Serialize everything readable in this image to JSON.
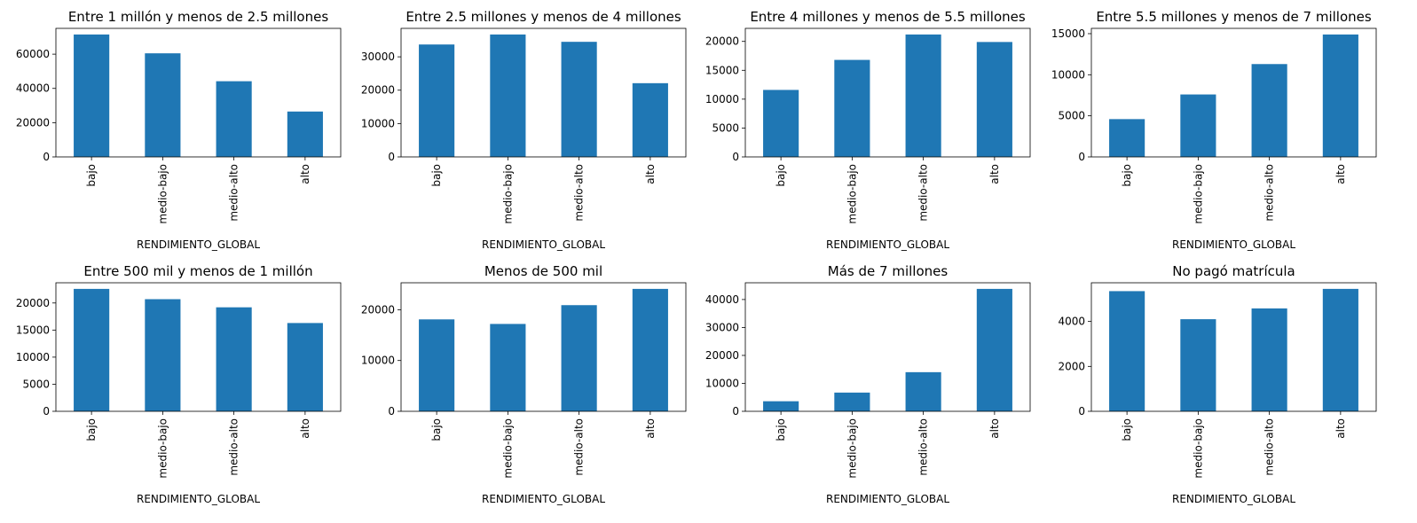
{
  "chart_data": [
    {
      "type": "bar",
      "title": "Entre 1 millón y menos de 2.5 millones",
      "xlabel": "RENDIMIENTO_GLOBAL",
      "ylabel": "",
      "categories": [
        "bajo",
        "medio-bajo",
        "medio-alto",
        "alto"
      ],
      "values": [
        71500,
        60500,
        44200,
        26500
      ],
      "ylim": [
        0,
        75075
      ],
      "yticks": [
        0,
        20000,
        40000,
        60000
      ],
      "color": "#1f77b4"
    },
    {
      "type": "bar",
      "title": "Entre 2.5 millones y menos de 4 millones",
      "xlabel": "RENDIMIENTO_GLOBAL",
      "ylabel": "",
      "categories": [
        "bajo",
        "medio-bajo",
        "medio-alto",
        "alto"
      ],
      "values": [
        33700,
        36700,
        34500,
        22100
      ],
      "ylim": [
        0,
        38535
      ],
      "yticks": [
        0,
        10000,
        20000,
        30000
      ],
      "color": "#1f77b4"
    },
    {
      "type": "bar",
      "title": "Entre 4 millones y menos de 5.5 millones",
      "xlabel": "RENDIMIENTO_GLOBAL",
      "ylabel": "",
      "categories": [
        "bajo",
        "medio-bajo",
        "medio-alto",
        "alto"
      ],
      "values": [
        11600,
        16800,
        21200,
        19900
      ],
      "ylim": [
        0,
        22260
      ],
      "yticks": [
        0,
        5000,
        10000,
        15000,
        20000
      ],
      "color": "#1f77b4"
    },
    {
      "type": "bar",
      "title": "Entre 5.5 millones y menos de 7 millones",
      "xlabel": "RENDIMIENTO_GLOBAL",
      "ylabel": "",
      "categories": [
        "bajo",
        "medio-bajo",
        "medio-alto",
        "alto"
      ],
      "values": [
        4600,
        7600,
        11300,
        14900
      ],
      "ylim": [
        0,
        15645
      ],
      "yticks": [
        0,
        5000,
        10000,
        15000
      ],
      "color": "#1f77b4"
    },
    {
      "type": "bar",
      "title": "Entre 500 mil y menos de 1 millón",
      "xlabel": "RENDIMIENTO_GLOBAL",
      "ylabel": "",
      "categories": [
        "bajo",
        "medio-bajo",
        "medio-alto",
        "alto"
      ],
      "values": [
        22600,
        20700,
        19200,
        16300
      ],
      "ylim": [
        0,
        23730
      ],
      "yticks": [
        0,
        5000,
        10000,
        15000,
        20000
      ],
      "color": "#1f77b4"
    },
    {
      "type": "bar",
      "title": "Menos de 500 mil",
      "xlabel": "RENDIMIENTO_GLOBAL",
      "ylabel": "",
      "categories": [
        "bajo",
        "medio-bajo",
        "medio-alto",
        "alto"
      ],
      "values": [
        18100,
        17200,
        20900,
        24100
      ],
      "ylim": [
        0,
        25305
      ],
      "yticks": [
        0,
        10000,
        20000
      ],
      "color": "#1f77b4"
    },
    {
      "type": "bar",
      "title": "Más de 7 millones",
      "xlabel": "RENDIMIENTO_GLOBAL",
      "ylabel": "",
      "categories": [
        "bajo",
        "medio-bajo",
        "medio-alto",
        "alto"
      ],
      "values": [
        3600,
        6700,
        14000,
        43800
      ],
      "ylim": [
        0,
        45990
      ],
      "yticks": [
        0,
        10000,
        20000,
        30000,
        40000
      ],
      "color": "#1f77b4"
    },
    {
      "type": "bar",
      "title": "No pagó matrícula",
      "xlabel": "RENDIMIENTO_GLOBAL",
      "ylabel": "",
      "categories": [
        "bajo",
        "medio-bajo",
        "medio-alto",
        "alto"
      ],
      "values": [
        5350,
        4100,
        4580,
        5450
      ],
      "ylim": [
        0,
        5722
      ],
      "yticks": [
        0,
        2000,
        4000
      ],
      "color": "#1f77b4"
    }
  ]
}
